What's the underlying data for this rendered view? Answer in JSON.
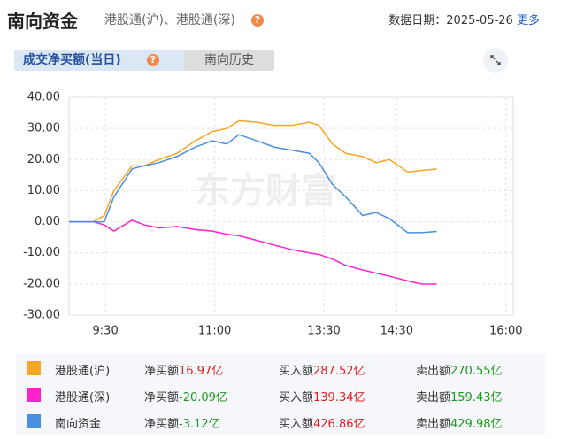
{
  "header": {
    "title": "南向资金",
    "subtitle": "港股通(沪)、港股通(深)",
    "help": "?",
    "date_label": "数据日期：",
    "date": "2025-05-26",
    "more": "更多"
  },
  "tabs": [
    "成交净买额(当日)",
    "南向历史"
  ],
  "tab_help": "?",
  "chart_data": {
    "type": "line",
    "watermark": "东方财富",
    "x": [
      0,
      20,
      29,
      37,
      52,
      62,
      74,
      89,
      104,
      118,
      130,
      140,
      155,
      169,
      184,
      198,
      206,
      217,
      228,
      242,
      253,
      264,
      279,
      290,
      303
    ],
    "series": [
      {
        "name": "港股通(沪)",
        "color": "#f5a623",
        "values": [
          0,
          0,
          2,
          10,
          18,
          18,
          20,
          22,
          26,
          29,
          30,
          32.5,
          32,
          31,
          31,
          32,
          31,
          25,
          22,
          21,
          19,
          20,
          16,
          16.5,
          16.97
        ]
      },
      {
        "name": "港股通(深)",
        "color": "#ff22cc",
        "values": [
          0,
          0,
          -1,
          -3,
          0.5,
          -1,
          -2,
          -1.5,
          -2.5,
          -3,
          -4,
          -4.5,
          -6,
          -7.5,
          -9,
          -10,
          -10.5,
          -12,
          -14,
          -15.5,
          -16.5,
          -17.5,
          -19,
          -20,
          -20.09
        ]
      },
      {
        "name": "南向资金",
        "color": "#4a90e2",
        "values": [
          0,
          0,
          0,
          8,
          17,
          18,
          19,
          21,
          24,
          26,
          25,
          28,
          26,
          24,
          23,
          22,
          19,
          12,
          8,
          2,
          3,
          1,
          -3.5,
          -3.5,
          -3.12
        ]
      }
    ],
    "xlim": [
      0,
      366
    ],
    "xticks": [
      {
        "value": 30,
        "label": "9:30"
      },
      {
        "value": 120,
        "label": "11:00"
      },
      {
        "value": 210,
        "label": "13:30"
      },
      {
        "value": 270,
        "label": "14:30"
      },
      {
        "value": 360,
        "label": "16:00"
      }
    ],
    "ylim": [
      -30,
      40
    ],
    "yticks": [
      {
        "value": 40,
        "label": "40.00"
      },
      {
        "value": 30,
        "label": "30.00"
      },
      {
        "value": 20,
        "label": "20.00"
      },
      {
        "value": 10,
        "label": "10.00"
      },
      {
        "value": 0,
        "label": "0.00"
      },
      {
        "value": -10,
        "label": "-10.00"
      },
      {
        "value": -20,
        "label": "-20.00"
      },
      {
        "value": -30,
        "label": "-30.00"
      }
    ],
    "grid": true
  },
  "summary": [
    {
      "net_label": "净买额",
      "net": "16.97亿",
      "buy_label": "买入额",
      "buy": "287.52亿",
      "sell_label": "卖出额",
      "sell": "270.55亿"
    },
    {
      "net_label": "净买额",
      "net": "-20.09亿",
      "buy_label": "买入额",
      "buy": "139.34亿",
      "sell_label": "卖出额",
      "sell": "159.43亿"
    },
    {
      "net_label": "净买额",
      "net": "-3.12亿",
      "buy_label": "买入额",
      "buy": "426.86亿",
      "sell_label": "卖出额",
      "sell": "429.98亿"
    }
  ]
}
